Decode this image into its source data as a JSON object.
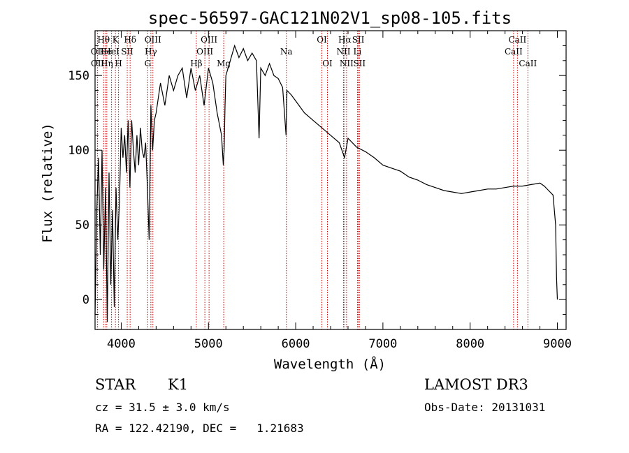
{
  "chart_data": {
    "type": "line",
    "title": "spec-56597-GAC121N02V1_sp08-105.fits",
    "xlabel": "Wavelength (Å)",
    "ylabel": "Flux (relative)",
    "xlim": [
      3700,
      9100
    ],
    "ylim": [
      -20,
      180
    ],
    "xticks": [
      4000,
      5000,
      6000,
      7000,
      8000,
      9000
    ],
    "yticks": [
      0,
      50,
      100,
      150
    ],
    "series": [
      {
        "name": "flux",
        "x": [
          3700,
          3720,
          3740,
          3760,
          3780,
          3800,
          3820,
          3840,
          3860,
          3880,
          3900,
          3920,
          3940,
          3960,
          3980,
          4000,
          4020,
          4040,
          4060,
          4080,
          4100,
          4120,
          4140,
          4160,
          4180,
          4200,
          4220,
          4240,
          4260,
          4280,
          4300,
          4320,
          4340,
          4360,
          4380,
          4400,
          4450,
          4500,
          4550,
          4600,
          4650,
          4700,
          4750,
          4800,
          4850,
          4900,
          4950,
          5000,
          5050,
          5100,
          5150,
          5170,
          5180,
          5190,
          5200,
          5250,
          5300,
          5350,
          5400,
          5450,
          5500,
          5550,
          5580,
          5600,
          5650,
          5700,
          5750,
          5800,
          5850,
          5890,
          5900,
          5950,
          6000,
          6100,
          6200,
          6300,
          6400,
          6500,
          6560,
          6600,
          6700,
          6800,
          6900,
          7000,
          7100,
          7200,
          7300,
          7400,
          7500,
          7600,
          7700,
          7800,
          7900,
          8000,
          8100,
          8200,
          8300,
          8400,
          8500,
          8600,
          8700,
          8800,
          8850,
          8900,
          8950,
          8980,
          8990,
          9000
        ],
        "y": [
          -10,
          60,
          95,
          30,
          100,
          20,
          75,
          -15,
          85,
          10,
          60,
          -5,
          75,
          40,
          65,
          115,
          95,
          110,
          85,
          120,
          75,
          120,
          100,
          85,
          110,
          90,
          115,
          100,
          95,
          105,
          75,
          40,
          130,
          100,
          120,
          125,
          145,
          130,
          150,
          140,
          150,
          155,
          135,
          155,
          140,
          150,
          130,
          155,
          145,
          125,
          110,
          90,
          100,
          130,
          150,
          160,
          170,
          162,
          168,
          160,
          165,
          160,
          108,
          155,
          150,
          158,
          150,
          148,
          142,
          110,
          140,
          137,
          133,
          125,
          120,
          115,
          110,
          105,
          95,
          108,
          102,
          99,
          95,
          90,
          88,
          86,
          82,
          80,
          77,
          75,
          73,
          72,
          71,
          72,
          73,
          74,
          74,
          75,
          76,
          76,
          77,
          78,
          76,
          73,
          70,
          50,
          15,
          0
        ]
      }
    ],
    "lines": [
      {
        "label": "Hθ",
        "x": 3798,
        "row": 1
      },
      {
        "label": "OII",
        "x": 3727,
        "row": 2
      },
      {
        "label": "OII",
        "x": 3729,
        "row": 3
      },
      {
        "label": "He",
        "x": 3820,
        "row": 2
      },
      {
        "label": "Hη",
        "x": 3835,
        "row": 3
      },
      {
        "label": "K",
        "x": 3934,
        "row": 1
      },
      {
        "label": "HeI",
        "x": 3889,
        "row": 2
      },
      {
        "label": "SII",
        "x": 4069,
        "row": 2
      },
      {
        "label": "H",
        "x": 3969,
        "row": 3
      },
      {
        "label": "Hδ",
        "x": 4102,
        "row": 1
      },
      {
        "label": "OIII",
        "x": 4363,
        "row": 1
      },
      {
        "label": "Hγ",
        "x": 4340,
        "row": 2
      },
      {
        "label": "G",
        "x": 4304,
        "row": 3
      },
      {
        "label": "OIII",
        "x": 5007,
        "row": 1
      },
      {
        "label": "OIII",
        "x": 4959,
        "row": 2
      },
      {
        "label": "Hβ",
        "x": 4861,
        "row": 3
      },
      {
        "label": "Mg",
        "x": 5175,
        "row": 3
      },
      {
        "label": "Na",
        "x": 5893,
        "row": 2
      },
      {
        "label": "OI",
        "x": 6300,
        "row": 1
      },
      {
        "label": "OI",
        "x": 6364,
        "row": 3
      },
      {
        "label": "Hα",
        "x": 6563,
        "row": 1
      },
      {
        "label": "SII",
        "x": 6717,
        "row": 1
      },
      {
        "label": "NII",
        "x": 6548,
        "row": 2
      },
      {
        "label": "Li",
        "x": 6708,
        "row": 2
      },
      {
        "label": "NII",
        "x": 6583,
        "row": 3
      },
      {
        "label": "SII",
        "x": 6731,
        "row": 3
      },
      {
        "label": "CaII",
        "x": 8542,
        "row": 1
      },
      {
        "label": "CaII",
        "x": 8498,
        "row": 2
      },
      {
        "label": "CaII",
        "x": 8662,
        "row": 3
      }
    ]
  },
  "info": {
    "class_label": "STAR",
    "subclass_label": "K1",
    "survey_label": "LAMOST DR3",
    "cz_text": "cz = 31.5 ± 3.0 km/s",
    "obs_date_text": "Obs-Date: 20131031",
    "radec_text": "RA = 122.42190, DEC =   1.21683"
  },
  "colors": {
    "line_marker": "#cc0000",
    "spectrum": "#000000",
    "axes": "#000000"
  }
}
